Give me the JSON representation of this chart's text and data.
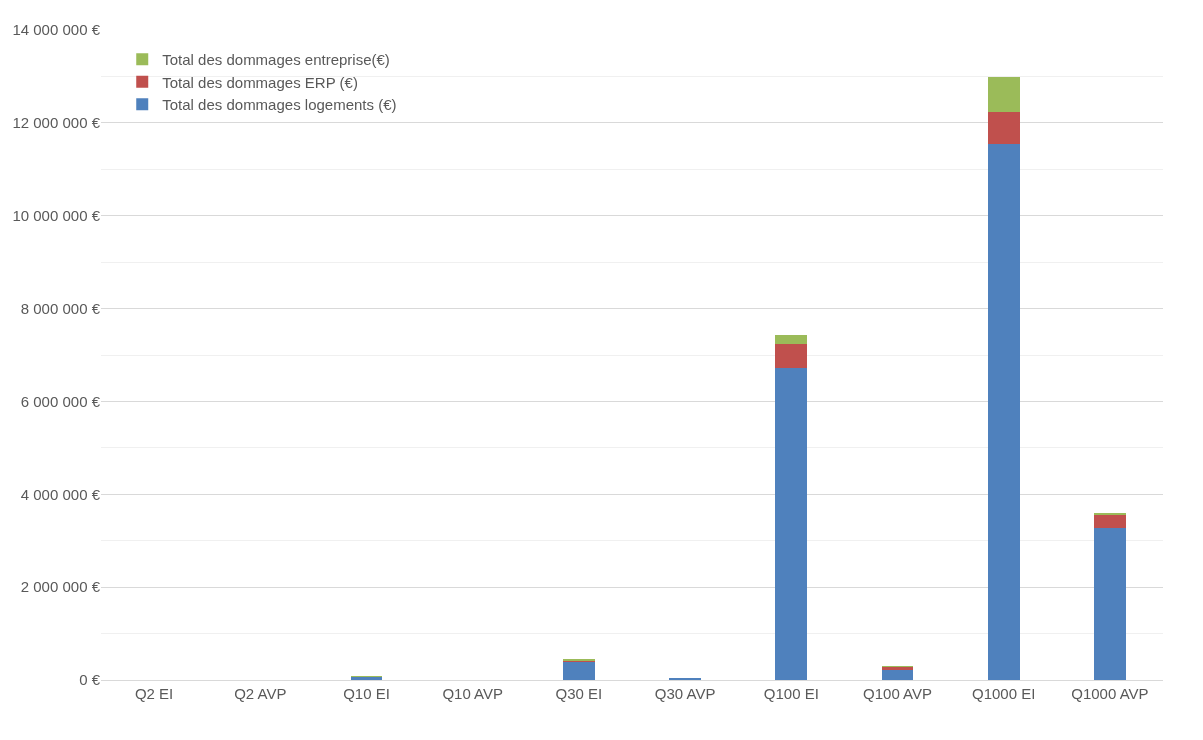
{
  "chart_data": {
    "type": "bar",
    "stacked": true,
    "categories": [
      "Q2 EI",
      "Q2 AVP",
      "Q10 EI",
      "Q10 AVP",
      "Q30 EI",
      "Q30 AVP",
      "Q100 EI",
      "Q100 AVP",
      "Q1000 EI",
      "Q1000 AVP"
    ],
    "series": [
      {
        "name": "Total des dommages logements (€)",
        "color": "#4f81bd",
        "values": [
          0,
          0,
          70000,
          0,
          400000,
          30000,
          6730000,
          210000,
          11540000,
          3270000
        ]
      },
      {
        "name": "Total des dommages ERP (€)",
        "color": "#c0504d",
        "values": [
          0,
          0,
          0,
          0,
          20000,
          0,
          500000,
          70000,
          700000,
          300000
        ]
      },
      {
        "name": "Total des dommages entreprise(€)",
        "color": "#9bbb59",
        "values": [
          0,
          0,
          10000,
          0,
          20000,
          0,
          210000,
          10000,
          740000,
          20000
        ]
      }
    ],
    "ylim": [
      0,
      14000000
    ],
    "yticks": [
      {
        "value": 0,
        "label": "0 €"
      },
      {
        "value": 2000000,
        "label": "2 000 000 €"
      },
      {
        "value": 4000000,
        "label": "4 000 000 €"
      },
      {
        "value": 6000000,
        "label": "6 000 000 €"
      },
      {
        "value": 8000000,
        "label": "8 000 000 €"
      },
      {
        "value": 10000000,
        "label": "10 000 000 €"
      },
      {
        "value": 12000000,
        "label": "12 000 000 €"
      },
      {
        "value": 14000000,
        "label": "14 000 000 €"
      }
    ],
    "grid": "y",
    "legend": "top left"
  }
}
